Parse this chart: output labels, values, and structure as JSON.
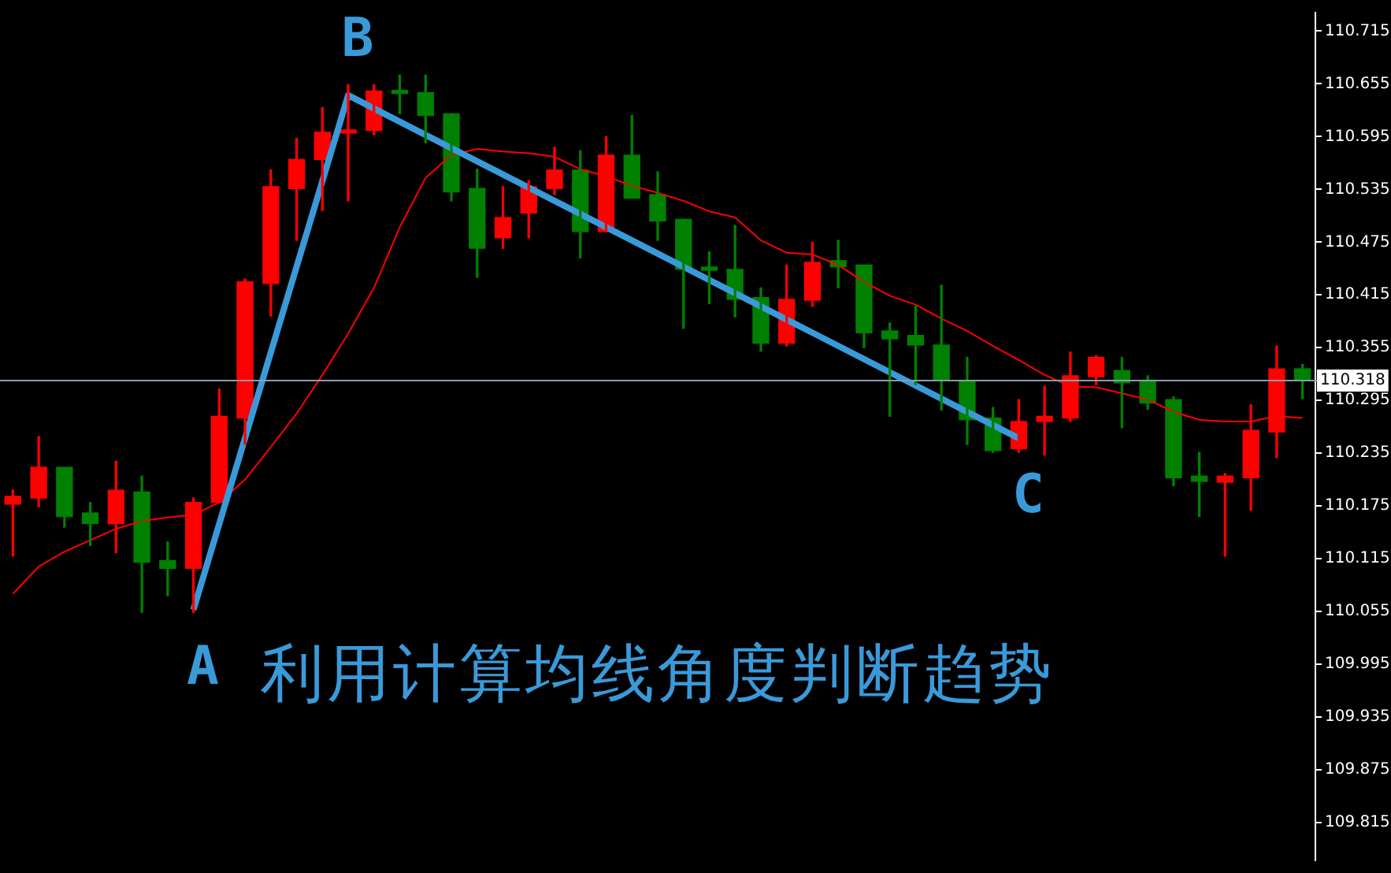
{
  "chart_data": {
    "type": "candlestick",
    "title": "利用计算均线角度判断趋势",
    "categories": [
      null,
      null,
      null,
      null,
      null,
      null,
      null,
      null,
      null,
      null,
      null,
      null,
      null,
      null,
      null,
      null,
      null,
      null,
      null,
      null,
      null,
      null,
      null,
      null,
      null,
      null,
      null,
      null,
      null,
      null,
      null,
      null,
      null,
      null,
      null,
      null,
      null,
      null,
      null,
      null,
      null,
      null,
      null,
      null,
      null,
      null,
      null,
      null,
      null,
      null,
      null
    ],
    "ohlc": [
      [
        110.177,
        110.193,
        110.118,
        110.186
      ],
      [
        110.184,
        110.254,
        110.174,
        110.219
      ],
      [
        110.219,
        110.219,
        110.151,
        110.163
      ],
      [
        110.167,
        110.179,
        110.13,
        110.155
      ],
      [
        110.155,
        110.226,
        110.122,
        110.193
      ],
      [
        110.191,
        110.209,
        110.054,
        110.111
      ],
      [
        110.113,
        110.134,
        110.073,
        110.104
      ],
      [
        110.104,
        110.184,
        110.054,
        110.179
      ],
      [
        110.179,
        110.308,
        110.179,
        110.277
      ],
      [
        110.275,
        110.433,
        110.245,
        110.43
      ],
      [
        110.428,
        110.557,
        110.391,
        110.538
      ],
      [
        110.536,
        110.593,
        110.477,
        110.569
      ],
      [
        110.569,
        110.628,
        110.511,
        110.6
      ],
      [
        110.599,
        110.654,
        110.522,
        110.601
      ],
      [
        110.602,
        110.654,
        110.597,
        110.647
      ],
      [
        110.647,
        110.665,
        110.621,
        110.644
      ],
      [
        110.645,
        110.665,
        110.588,
        110.619
      ],
      [
        110.621,
        110.621,
        110.522,
        110.532
      ],
      [
        110.536,
        110.558,
        110.435,
        110.468
      ],
      [
        110.48,
        110.538,
        110.468,
        110.503
      ],
      [
        110.508,
        110.545,
        110.48,
        110.538
      ],
      [
        110.536,
        110.583,
        110.529,
        110.557
      ],
      [
        110.557,
        110.579,
        110.457,
        110.487
      ],
      [
        110.487,
        110.595,
        110.487,
        110.574
      ],
      [
        110.574,
        110.619,
        110.525,
        110.525
      ],
      [
        110.529,
        110.555,
        110.477,
        110.499
      ],
      [
        110.501,
        110.501,
        110.377,
        110.444
      ],
      [
        110.445,
        110.464,
        110.405,
        110.443
      ],
      [
        110.444,
        110.494,
        110.39,
        110.41
      ],
      [
        110.412,
        110.423,
        110.351,
        110.36
      ],
      [
        110.36,
        110.449,
        110.357,
        110.41
      ],
      [
        110.409,
        110.475,
        110.402,
        110.452
      ],
      [
        110.454,
        110.477,
        110.423,
        110.447
      ],
      [
        110.449,
        110.449,
        110.355,
        110.372
      ],
      [
        110.374,
        110.383,
        110.277,
        110.365
      ],
      [
        110.369,
        110.402,
        110.313,
        110.358
      ],
      [
        110.358,
        110.426,
        110.284,
        110.318
      ],
      [
        110.318,
        110.344,
        110.245,
        110.273
      ],
      [
        110.275,
        110.287,
        110.236,
        110.238
      ],
      [
        110.24,
        110.296,
        110.236,
        110.271
      ],
      [
        110.271,
        110.311,
        110.233,
        110.277
      ],
      [
        110.275,
        110.35,
        110.271,
        110.323
      ],
      [
        110.322,
        110.346,
        110.313,
        110.344
      ],
      [
        110.329,
        110.344,
        110.264,
        110.315
      ],
      [
        110.318,
        110.323,
        110.285,
        110.292
      ],
      [
        110.296,
        110.299,
        110.198,
        110.207
      ],
      [
        110.209,
        110.236,
        110.163,
        110.203
      ],
      [
        110.202,
        110.212,
        110.118,
        110.209
      ],
      [
        110.207,
        110.29,
        110.17,
        110.261
      ],
      [
        110.259,
        110.357,
        110.23,
        110.331
      ],
      [
        110.331,
        110.336,
        110.297,
        110.318
      ]
    ],
    "colors": [
      "#ff0000",
      "#ff0000",
      "#008000",
      "#008000",
      "#ff0000",
      "#008000",
      "#008000",
      "#ff0000",
      "#ff0000",
      "#ff0000",
      "#ff0000",
      "#ff0000",
      "#ff0000",
      "#ff0000",
      "#ff0000",
      "#008000",
      "#008000",
      "#008000",
      "#008000",
      "#ff0000",
      "#ff0000",
      "#ff0000",
      "#008000",
      "#ff0000",
      "#008000",
      "#008000",
      "#008000",
      "#008000",
      "#008000",
      "#008000",
      "#ff0000",
      "#ff0000",
      "#008000",
      "#008000",
      "#008000",
      "#008000",
      "#008000",
      "#008000",
      "#008000",
      "#ff0000",
      "#ff0000",
      "#ff0000",
      "#ff0000",
      "#008000",
      "#008000",
      "#008000",
      "#008000",
      "#ff0000",
      "#ff0000",
      "#ff0000",
      "#008000"
    ],
    "series": [
      {
        "type": "line",
        "color": "#ff0000",
        "values": [
          110.075,
          110.106,
          110.123,
          110.136,
          110.149,
          110.158,
          110.162,
          110.165,
          110.179,
          110.205,
          110.242,
          110.28,
          110.324,
          110.371,
          110.423,
          110.492,
          110.548,
          110.574,
          110.581,
          110.578,
          110.576,
          110.572,
          110.558,
          110.55,
          110.539,
          110.531,
          110.522,
          110.51,
          110.503,
          110.477,
          110.463,
          110.461,
          110.449,
          110.43,
          110.414,
          110.404,
          110.388,
          110.374,
          110.357,
          110.341,
          110.324,
          110.311,
          110.31,
          110.303,
          110.296,
          110.282,
          110.273,
          110.271,
          110.271,
          110.277,
          110.275
        ]
      },
      {
        "type": "line",
        "color": "#3a9ad9",
        "values": [
          null,
          null,
          null,
          null,
          null,
          null,
          null,
          110.057,
          null,
          null,
          null,
          null,
          null,
          110.642,
          null,
          null,
          null,
          null,
          null,
          null,
          null,
          null,
          null,
          null,
          null,
          null,
          null,
          null,
          null,
          null,
          null,
          null,
          null,
          null,
          null,
          null,
          null,
          null,
          null,
          110.252,
          null,
          null,
          null,
          null,
          null,
          null,
          null,
          null,
          null,
          null,
          null
        ]
      }
    ],
    "annotations": [
      "A",
      "B",
      "C"
    ],
    "ref_lines": [
      {
        "axis": "y",
        "value": 110.318,
        "label": "110.318",
        "color": "#8a9bb0"
      }
    ],
    "ylim": [
      109.772,
      110.736
    ],
    "yticks": [
      109.815,
      109.875,
      109.935,
      109.995,
      110.055,
      110.115,
      110.175,
      110.235,
      110.295,
      110.355,
      110.415,
      110.475,
      110.535,
      110.595,
      110.655,
      110.715
    ],
    "tick_labels": "y"
  }
}
